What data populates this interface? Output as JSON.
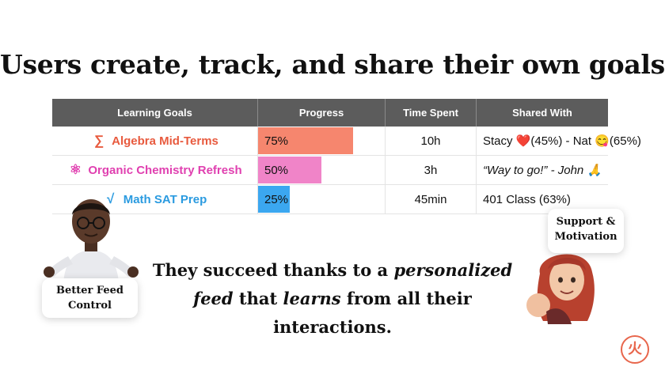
{
  "title": "Users create, track, and share their own goals",
  "table": {
    "headers": [
      "Learning Goals",
      "Progress",
      "Time Spent",
      "Shared With"
    ],
    "rows": [
      {
        "goal": "Algebra Mid-Terms",
        "icon": "sigma-icon",
        "icon_glyph": "∑",
        "goal_color": "#e85a3e",
        "progress_label": "75%",
        "progress": 0.75,
        "bar_color": "#f6866e",
        "time": "10h",
        "shared": "Stacy ❤️(45%) - Nat 😋(65%)"
      },
      {
        "goal": "Organic Chemistry Refresh",
        "icon": "atom-icon",
        "icon_glyph": "⚛",
        "goal_color": "#e040b0",
        "progress_label": "50%",
        "progress": 0.5,
        "bar_color": "#f084c8",
        "time": "3h",
        "shared": "“Way to go!” - John 🙏"
      },
      {
        "goal": "Math SAT Prep",
        "icon": "square-root-icon",
        "icon_glyph": "√",
        "goal_color": "#2b9be0",
        "progress_label": "25%",
        "progress": 0.25,
        "bar_color": "#3ba7f0",
        "time": "45min",
        "shared": "401 Class (63%)"
      }
    ]
  },
  "caption": {
    "line1_pre": "They succeed thanks to a ",
    "line1_em": "personalized",
    "line2_em1": "feed",
    "line2_mid": " that ",
    "line2_em2": "learns",
    "line2_post": " from all their",
    "line3": "interactions."
  },
  "bubble_left": {
    "line1": "Better Feed",
    "line2": "Control"
  },
  "bubble_right": {
    "line1": "Support &",
    "line2": "Motivation"
  },
  "logo_glyph": "火"
}
